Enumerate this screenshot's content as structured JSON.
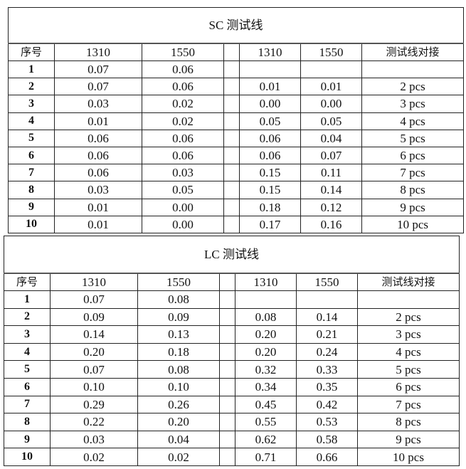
{
  "tables": [
    {
      "id": "sc",
      "title": "SC 测试线",
      "headers": [
        "序号",
        "1310",
        "1550",
        "",
        "1310",
        "1550",
        "测试线对接"
      ],
      "rows": [
        [
          "1",
          "0.07",
          "0.06",
          "",
          "",
          "",
          ""
        ],
        [
          "2",
          "0.07",
          "0.06",
          "",
          "0.01",
          "0.01",
          "2 pcs"
        ],
        [
          "3",
          "0.03",
          "0.02",
          "",
          "0.00",
          "0.00",
          "3 pcs"
        ],
        [
          "4",
          "0.01",
          "0.02",
          "",
          "0.05",
          "0.05",
          "4 pcs"
        ],
        [
          "5",
          "0.06",
          "0.06",
          "",
          "0.06",
          "0.04",
          "5 pcs"
        ],
        [
          "6",
          "0.06",
          "0.06",
          "",
          "0.06",
          "0.07",
          "6 pcs"
        ],
        [
          "7",
          "0.06",
          "0.03",
          "",
          "0.15",
          "0.11",
          "7 pcs"
        ],
        [
          "8",
          "0.03",
          "0.05",
          "",
          "0.15",
          "0.14",
          "8 pcs"
        ],
        [
          "9",
          "0.01",
          "0.00",
          "",
          "0.18",
          "0.12",
          "9 pcs"
        ],
        [
          "10",
          "0.01",
          "0.00",
          "",
          "0.17",
          "0.16",
          "10 pcs"
        ]
      ]
    },
    {
      "id": "lc",
      "title": "LC 测试线",
      "headers": [
        "序号",
        "1310",
        "1550",
        "",
        "1310",
        "1550",
        "测试线对接"
      ],
      "rows": [
        [
          "1",
          "0.07",
          "0.08",
          "",
          "",
          "",
          ""
        ],
        [
          "2",
          "0.09",
          "0.09",
          "",
          "0.08",
          "0.14",
          "2 pcs"
        ],
        [
          "3",
          "0.14",
          "0.13",
          "",
          "0.20",
          "0.21",
          "3 pcs"
        ],
        [
          "4",
          "0.20",
          "0.18",
          "",
          "0.20",
          "0.24",
          "4 pcs"
        ],
        [
          "5",
          "0.07",
          "0.08",
          "",
          "0.32",
          "0.33",
          "5 pcs"
        ],
        [
          "6",
          "0.10",
          "0.10",
          "",
          "0.34",
          "0.35",
          "6 pcs"
        ],
        [
          "7",
          "0.29",
          "0.26",
          "",
          "0.45",
          "0.42",
          "7 pcs"
        ],
        [
          "8",
          "0.22",
          "0.20",
          "",
          "0.55",
          "0.53",
          "8 pcs"
        ],
        [
          "9",
          "0.03",
          "0.04",
          "",
          "0.62",
          "0.58",
          "9 pcs"
        ],
        [
          "10",
          "0.02",
          "0.02",
          "",
          "0.71",
          "0.66",
          "10 pcs"
        ]
      ]
    }
  ]
}
